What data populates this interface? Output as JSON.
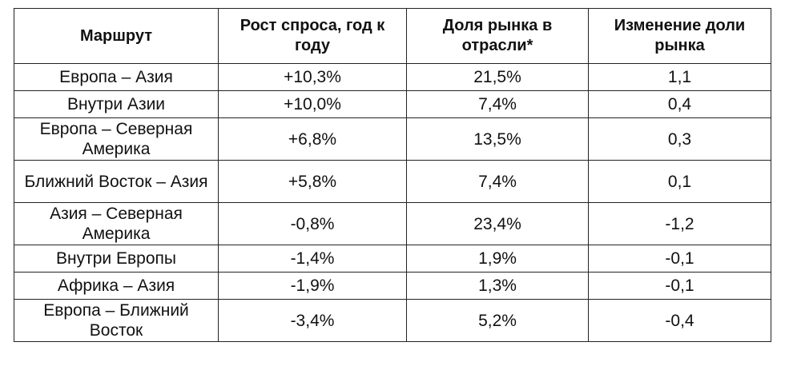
{
  "table": {
    "headers": [
      "Маршрут",
      "Рост спроса, год к году",
      "Доля рынка в отрасли*",
      "Изменение доли рынка"
    ],
    "rows": [
      [
        "Европа – Азия",
        "+10,3%",
        "21,5%",
        "1,1"
      ],
      [
        "Внутри Азии",
        "+10,0%",
        "7,4%",
        "0,4"
      ],
      [
        "Европа – Северная Америка",
        "+6,8%",
        "13,5%",
        "0,3"
      ],
      [
        "Ближний Восток – Азия",
        "+5,8%",
        "7,4%",
        "0,1"
      ],
      [
        "Азия – Северная Америка",
        "-0,8%",
        "23,4%",
        "-1,2"
      ],
      [
        "Внутри Европы",
        "-1,4%",
        "1,9%",
        "-0,1"
      ],
      [
        "Африка – Азия",
        "-1,9%",
        "1,3%",
        "-0,1"
      ],
      [
        "Европа – Ближний Восток",
        "-3,4%",
        "5,2%",
        "-0,4"
      ]
    ]
  }
}
